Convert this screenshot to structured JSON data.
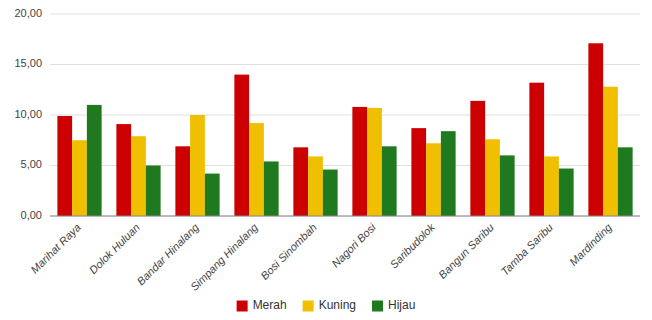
{
  "chart_data": {
    "type": "bar",
    "categories": [
      "Marihat Raya",
      "Dolok Huluan",
      "Bandar Hinalang",
      "Simpang Hinalang",
      "Bosi Sinombah",
      "Nagori Bosi",
      "Saribudolok",
      "Bangun Saribu",
      "Tamba Saribu",
      "Mardinding"
    ],
    "series": [
      {
        "name": "Merah",
        "color": "#CC0000",
        "values": [
          9.9,
          9.1,
          6.9,
          14.0,
          6.8,
          10.8,
          8.7,
          11.4,
          13.2,
          17.1
        ]
      },
      {
        "name": "Kuning",
        "color": "#F0C000",
        "values": [
          7.5,
          7.9,
          10.0,
          9.2,
          5.9,
          10.7,
          7.2,
          7.6,
          5.9,
          12.8
        ]
      },
      {
        "name": "Hijau",
        "color": "#1F7A1F",
        "values": [
          11.0,
          5.0,
          4.2,
          5.4,
          4.6,
          6.9,
          8.4,
          6.0,
          4.7,
          6.8
        ]
      }
    ],
    "ylim": [
      0,
      20
    ],
    "yticks": [
      {
        "value": 0,
        "label": "0,00"
      },
      {
        "value": 5,
        "label": "5,00"
      },
      {
        "value": 10,
        "label": "10,00"
      },
      {
        "value": 15,
        "label": "15,00"
      },
      {
        "value": 20,
        "label": "20,00"
      }
    ],
    "grid": true,
    "legend": "bottom"
  }
}
